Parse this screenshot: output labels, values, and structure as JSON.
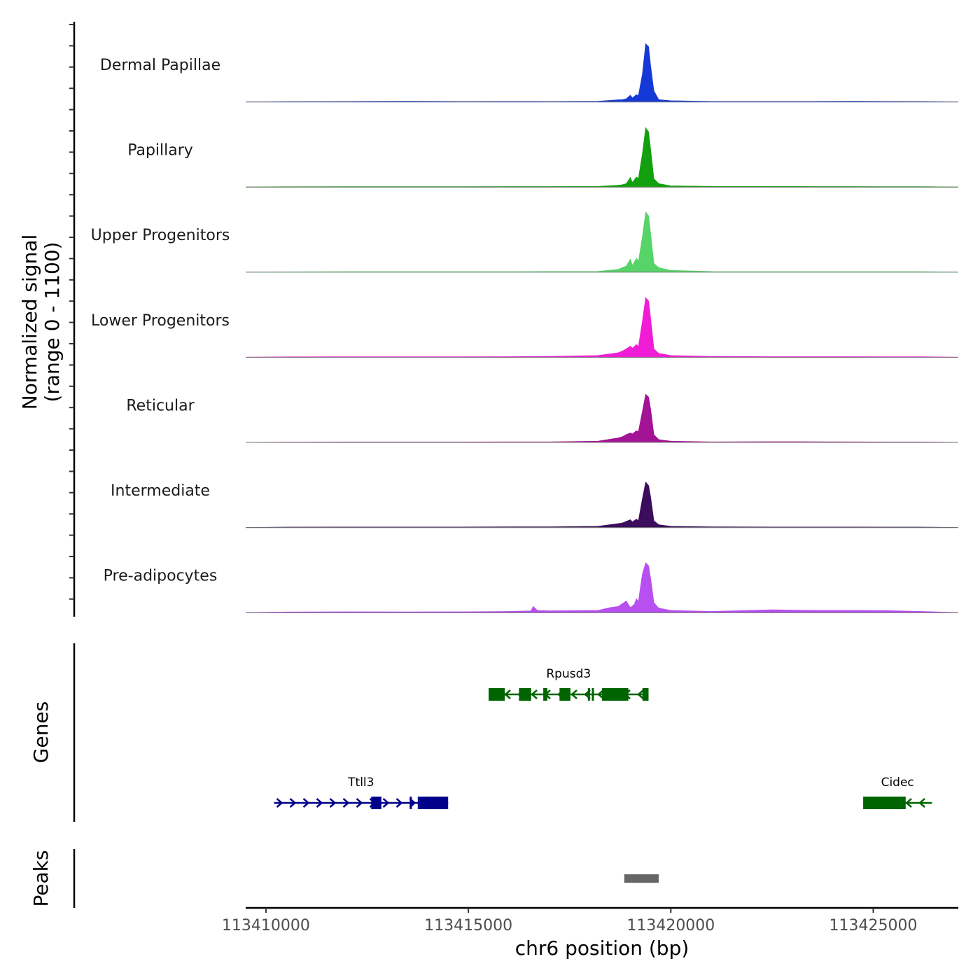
{
  "chart_data": {
    "type": "area",
    "title": "",
    "chromosome": "chr6",
    "xlabel": "chr6 position (bp)",
    "xlim": [
      113409500,
      113427100
    ],
    "x_ticks": [
      113410000,
      113415000,
      113420000,
      113425000
    ],
    "x_tick_labels": [
      "113410000",
      "113415000",
      "113420000",
      "113425000"
    ],
    "ylabel_line1": "Normalized signal",
    "ylabel_line2": "(range 0 - 1100)",
    "ylim": [
      0,
      1100
    ],
    "series": [
      {
        "name": "Dermal Papillae",
        "color": "#1539d6",
        "x": [
          113410500,
          113412000,
          113413500,
          113414800,
          113416000,
          113417000,
          113418200,
          113418700,
          113418800,
          113418900,
          113419000,
          113419050,
          113419150,
          113419200,
          113419300,
          113419380,
          113419450,
          113419500,
          113419580,
          113419700,
          113420000,
          113421000,
          113422500,
          113423500,
          113424500,
          113425300,
          113426200
        ],
        "y": [
          4,
          6,
          12,
          6,
          8,
          6,
          10,
          35,
          40,
          55,
          120,
          70,
          130,
          110,
          500,
          1050,
          1000,
          650,
          200,
          40,
          20,
          8,
          8,
          8,
          10,
          8,
          6
        ]
      },
      {
        "name": "Papillary",
        "color": "#12a00f",
        "x": [
          113410500,
          113412000,
          113413500,
          113414800,
          113416000,
          113417000,
          113418200,
          113418700,
          113418800,
          113418900,
          113419000,
          113419050,
          113419150,
          113419200,
          113419300,
          113419380,
          113419450,
          113419500,
          113419580,
          113419700,
          113420000,
          113421000,
          113422500,
          113423500,
          113424500,
          113425300,
          113426200
        ],
        "y": [
          4,
          6,
          6,
          6,
          8,
          8,
          10,
          30,
          40,
          60,
          170,
          80,
          180,
          150,
          600,
          1070,
          1000,
          680,
          150,
          60,
          20,
          10,
          10,
          8,
          8,
          6,
          6
        ]
      },
      {
        "name": "Upper Progenitors",
        "color": "#57d468",
        "x": [
          113410500,
          113412000,
          113413500,
          113414800,
          113416000,
          113417000,
          113418200,
          113418700,
          113418800,
          113418900,
          113419000,
          113419050,
          113419150,
          113419200,
          113419300,
          113419380,
          113419450,
          113419500,
          113419580,
          113419700,
          113420000,
          113421000,
          113422500,
          113423500,
          113424500,
          113425300,
          113426200
        ],
        "y": [
          4,
          6,
          6,
          6,
          8,
          10,
          12,
          50,
          80,
          110,
          230,
          120,
          250,
          190,
          640,
          1090,
          1020,
          700,
          160,
          80,
          30,
          10,
          8,
          8,
          8,
          6,
          6
        ]
      },
      {
        "name": "Lower Progenitors",
        "color": "#f01cd6",
        "x": [
          113410500,
          113412000,
          113413500,
          113414800,
          113416000,
          113417000,
          113418200,
          113418700,
          113418800,
          113418900,
          113419000,
          113419050,
          113419150,
          113419200,
          113419300,
          113419380,
          113419450,
          113419500,
          113419580,
          113419700,
          113420000,
          113421000,
          113422500,
          113423500,
          113424500,
          113425300,
          113426200
        ],
        "y": [
          6,
          8,
          8,
          8,
          10,
          14,
          30,
          80,
          110,
          150,
          200,
          160,
          230,
          190,
          650,
          1080,
          1020,
          700,
          150,
          70,
          30,
          14,
          10,
          10,
          10,
          8,
          8
        ]
      },
      {
        "name": "Reticular",
        "color": "#a31396",
        "x": [
          113410500,
          113412000,
          113413500,
          113414800,
          113416000,
          113417000,
          113418200,
          113418700,
          113418800,
          113418900,
          113419000,
          113419050,
          113419150,
          113419200,
          113419300,
          113419380,
          113419450,
          113419500,
          113419580,
          113419700,
          113420000,
          113421000,
          113422500,
          113423500,
          113424500,
          113425300,
          113426200
        ],
        "y": [
          4,
          6,
          6,
          6,
          8,
          8,
          20,
          80,
          100,
          140,
          170,
          150,
          210,
          190,
          560,
          870,
          820,
          600,
          140,
          50,
          20,
          8,
          12,
          10,
          8,
          6,
          6
        ]
      },
      {
        "name": "Intermediate",
        "color": "#3b0d5c",
        "x": [
          113410500,
          113412000,
          113413500,
          113414800,
          113416000,
          113417000,
          113418200,
          113418700,
          113418800,
          113418900,
          113419000,
          113419050,
          113419150,
          113419200,
          113419300,
          113419380,
          113419450,
          113419500,
          113419580,
          113419700,
          113420000,
          113421000,
          113422500,
          113423500,
          113424500,
          113425300,
          113426200
        ],
        "y": [
          6,
          8,
          8,
          8,
          10,
          10,
          20,
          70,
          80,
          110,
          140,
          100,
          150,
          120,
          520,
          820,
          760,
          550,
          120,
          50,
          20,
          10,
          8,
          8,
          8,
          6,
          6
        ]
      },
      {
        "name": "Pre-adipocytes",
        "color": "#b84ff0",
        "x": [
          113410500,
          113412000,
          113413500,
          113414800,
          113416000,
          113416550,
          113416600,
          113416700,
          113417000,
          113418200,
          113418500,
          113418700,
          113418900,
          113419000,
          113419100,
          113419150,
          113419200,
          113419300,
          113419380,
          113419450,
          113419500,
          113419580,
          113419700,
          113420000,
          113421000,
          113422500,
          113423500,
          113424500,
          113425300,
          113426200
        ],
        "y": [
          10,
          14,
          12,
          14,
          20,
          30,
          110,
          40,
          30,
          40,
          90,
          110,
          210,
          90,
          150,
          250,
          200,
          700,
          900,
          850,
          620,
          180,
          80,
          40,
          20,
          50,
          40,
          40,
          35,
          20
        ]
      }
    ],
    "gene_track_label": "Genes",
    "genes": [
      {
        "name": "Rpusd3",
        "strand": "-",
        "color": "#006400",
        "row": 1,
        "start": 113415500,
        "end": 113419450,
        "exons": [
          [
            113415500,
            113415900
          ],
          [
            113416250,
            113416550
          ],
          [
            113416850,
            113416950
          ],
          [
            113417250,
            113417520
          ],
          [
            113417950,
            113418000
          ],
          [
            113418050,
            113418100
          ],
          [
            113418300,
            113418750
          ],
          [
            113418750,
            113418950
          ],
          [
            113419300,
            113419450
          ]
        ]
      },
      {
        "name": "Ttll3",
        "strand": "+",
        "color": "#00008b",
        "row": 2,
        "start": 113410200,
        "end": 113414500,
        "exons": [
          [
            113412600,
            113412850
          ],
          [
            113413550,
            113413600
          ],
          [
            113413750,
            113413800
          ],
          [
            113413800,
            113414500
          ]
        ]
      },
      {
        "name": "Cidec",
        "strand": "-",
        "color": "#006400",
        "row": 2,
        "start": 113424750,
        "end": 113426450,
        "exons": [
          [
            113424750,
            113425800
          ]
        ]
      }
    ],
    "peak_track_label": "Peaks",
    "peaks": [
      {
        "start": 113418850,
        "end": 113419700,
        "color": "#666666"
      }
    ]
  }
}
